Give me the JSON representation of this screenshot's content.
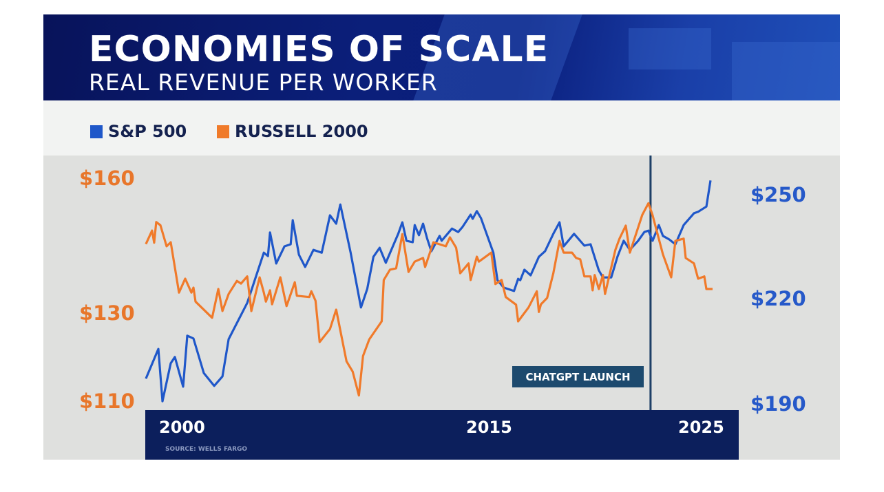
{
  "header": {
    "title": "ECONOMIES OF SCALE",
    "subtitle": "REAL REVENUE PER WORKER"
  },
  "footer": {
    "source": "SOURCE: WELLS FARGO"
  },
  "chart_data": {
    "type": "line",
    "title": "ECONOMIES OF SCALE",
    "subtitle": "REAL REVENUE PER WORKER",
    "legend_placement": "top-left",
    "grid": false,
    "x_ticks": [
      "2000",
      "2015",
      "2025"
    ],
    "xlim": [
      1998,
      2026
    ],
    "left_axis": {
      "ticks": [
        "$160",
        "$130",
        "$110"
      ],
      "ylim": [
        110,
        160
      ],
      "series": "RUSSELL 2000"
    },
    "right_axis": {
      "ticks": [
        "$250",
        "$220",
        "$190"
      ],
      "ylim": [
        190,
        250
      ],
      "series": "S&P 500"
    },
    "annotations": [
      {
        "label": "CHATGPT LAUNCH",
        "x": 2022.6
      }
    ],
    "series": [
      {
        "name": "S&P 500",
        "axis": "right",
        "color": "#1f57c9",
        "points": [
          [
            1998.2,
            197.3
          ],
          [
            1998.8,
            205.8
          ],
          [
            1999.0,
            190.8
          ],
          [
            1999.4,
            201.7
          ],
          [
            1999.6,
            203.5
          ],
          [
            2000.0,
            195.0
          ],
          [
            2000.2,
            209.6
          ],
          [
            2000.5,
            208.8
          ],
          [
            2001.0,
            198.9
          ],
          [
            2001.5,
            195.2
          ],
          [
            2001.9,
            197.9
          ],
          [
            2002.2,
            208.6
          ],
          [
            2003.1,
            219.0
          ],
          [
            2003.9,
            233.4
          ],
          [
            2004.1,
            232.4
          ],
          [
            2004.2,
            239.2
          ],
          [
            2004.5,
            230.3
          ],
          [
            2004.9,
            235.2
          ],
          [
            2005.2,
            235.8
          ],
          [
            2005.3,
            242.7
          ],
          [
            2005.6,
            232.8
          ],
          [
            2005.9,
            229.3
          ],
          [
            2006.3,
            234.2
          ],
          [
            2006.7,
            233.4
          ],
          [
            2007.1,
            244.1
          ],
          [
            2007.4,
            241.7
          ],
          [
            2007.6,
            247.2
          ],
          [
            2008.1,
            233.4
          ],
          [
            2008.6,
            217.7
          ],
          [
            2008.9,
            223.0
          ],
          [
            2009.2,
            232.2
          ],
          [
            2009.5,
            234.8
          ],
          [
            2009.8,
            230.5
          ],
          [
            2010.4,
            238.8
          ],
          [
            2010.6,
            242.1
          ],
          [
            2010.8,
            236.8
          ],
          [
            2011.1,
            236.4
          ],
          [
            2011.2,
            241.3
          ],
          [
            2011.4,
            238.4
          ],
          [
            2011.6,
            241.7
          ],
          [
            2011.8,
            237.4
          ],
          [
            2012.0,
            233.8
          ],
          [
            2012.4,
            238.2
          ],
          [
            2012.5,
            236.8
          ],
          [
            2013.0,
            240.3
          ],
          [
            2013.3,
            239.3
          ],
          [
            2013.5,
            240.7
          ],
          [
            2013.9,
            244.3
          ],
          [
            2014.0,
            243.1
          ],
          [
            2014.2,
            245.3
          ],
          [
            2014.4,
            243.3
          ],
          [
            2015.0,
            233.4
          ],
          [
            2015.2,
            225.5
          ],
          [
            2015.5,
            223.4
          ],
          [
            2016.0,
            222.4
          ],
          [
            2016.2,
            225.9
          ],
          [
            2016.3,
            225.5
          ],
          [
            2016.5,
            228.5
          ],
          [
            2016.8,
            226.9
          ],
          [
            2017.2,
            232.2
          ],
          [
            2017.5,
            233.8
          ],
          [
            2017.9,
            238.8
          ],
          [
            2018.2,
            242.1
          ],
          [
            2018.4,
            235.2
          ],
          [
            2018.9,
            238.8
          ],
          [
            2019.4,
            235.4
          ],
          [
            2019.7,
            235.8
          ],
          [
            2020.1,
            228.3
          ],
          [
            2020.3,
            226.3
          ],
          [
            2020.7,
            226.3
          ],
          [
            2021.0,
            232.2
          ],
          [
            2021.3,
            236.8
          ],
          [
            2021.6,
            234.2
          ],
          [
            2022.0,
            236.8
          ],
          [
            2022.3,
            239.3
          ],
          [
            2022.5,
            239.7
          ],
          [
            2022.7,
            236.8
          ],
          [
            2023.0,
            241.3
          ],
          [
            2023.2,
            238.2
          ],
          [
            2023.5,
            237.2
          ],
          [
            2023.8,
            235.8
          ],
          [
            2024.2,
            241.3
          ],
          [
            2024.7,
            244.7
          ],
          [
            2024.9,
            245.1
          ],
          [
            2025.3,
            246.6
          ],
          [
            2025.5,
            254.1
          ]
        ]
      },
      {
        "name": "RUSSELL 2000",
        "axis": "left",
        "color": "#f07a2a",
        "points": [
          [
            1998.2,
            145.5
          ],
          [
            1998.5,
            148.5
          ],
          [
            1998.6,
            145.8
          ],
          [
            1998.7,
            150.4
          ],
          [
            1998.9,
            149.7
          ],
          [
            1999.2,
            145.0
          ],
          [
            1999.4,
            145.9
          ],
          [
            1999.8,
            134.7
          ],
          [
            2000.1,
            137.8
          ],
          [
            2000.4,
            134.7
          ],
          [
            2000.5,
            135.8
          ],
          [
            2000.6,
            132.7
          ],
          [
            2001.4,
            129.1
          ],
          [
            2001.7,
            135.5
          ],
          [
            2001.9,
            130.6
          ],
          [
            2002.2,
            134.4
          ],
          [
            2002.6,
            137.3
          ],
          [
            2002.8,
            136.7
          ],
          [
            2003.1,
            138.3
          ],
          [
            2003.3,
            130.6
          ],
          [
            2003.7,
            138.1
          ],
          [
            2003.9,
            134.7
          ],
          [
            2004.0,
            132.7
          ],
          [
            2004.2,
            135.2
          ],
          [
            2004.3,
            132.1
          ],
          [
            2004.7,
            138.1
          ],
          [
            2005.0,
            131.7
          ],
          [
            2005.4,
            137.0
          ],
          [
            2005.5,
            134.0
          ],
          [
            2006.1,
            133.7
          ],
          [
            2006.2,
            135.0
          ],
          [
            2006.4,
            132.9
          ],
          [
            2006.6,
            123.7
          ],
          [
            2007.1,
            126.6
          ],
          [
            2007.4,
            130.9
          ],
          [
            2007.9,
            119.4
          ],
          [
            2008.2,
            117.1
          ],
          [
            2008.5,
            111.8
          ],
          [
            2008.7,
            120.6
          ],
          [
            2009.0,
            124.3
          ],
          [
            2009.6,
            128.3
          ],
          [
            2009.7,
            137.5
          ],
          [
            2010.0,
            139.8
          ],
          [
            2010.3,
            140.1
          ],
          [
            2010.6,
            147.7
          ],
          [
            2010.9,
            139.3
          ],
          [
            2011.2,
            141.6
          ],
          [
            2011.6,
            142.4
          ],
          [
            2011.7,
            140.4
          ],
          [
            2012.1,
            145.9
          ],
          [
            2012.7,
            145.0
          ],
          [
            2012.9,
            147.0
          ],
          [
            2013.2,
            144.7
          ],
          [
            2013.4,
            139.0
          ],
          [
            2013.8,
            141.2
          ],
          [
            2013.9,
            137.5
          ],
          [
            2014.2,
            142.7
          ],
          [
            2014.3,
            141.6
          ],
          [
            2014.9,
            143.6
          ],
          [
            2015.1,
            136.6
          ],
          [
            2015.4,
            137.5
          ],
          [
            2015.6,
            133.7
          ],
          [
            2016.1,
            132.0
          ],
          [
            2016.2,
            128.3
          ],
          [
            2016.7,
            131.4
          ],
          [
            2017.1,
            135.0
          ],
          [
            2017.2,
            130.4
          ],
          [
            2017.3,
            132.1
          ],
          [
            2017.6,
            133.5
          ],
          [
            2017.9,
            139.0
          ],
          [
            2018.2,
            146.2
          ],
          [
            2018.4,
            143.6
          ],
          [
            2018.8,
            143.6
          ],
          [
            2019.0,
            142.4
          ],
          [
            2019.2,
            142.1
          ],
          [
            2019.4,
            138.3
          ],
          [
            2019.7,
            138.3
          ],
          [
            2019.8,
            135.2
          ],
          [
            2019.9,
            138.6
          ],
          [
            2020.1,
            135.5
          ],
          [
            2020.3,
            138.6
          ],
          [
            2020.4,
            134.4
          ],
          [
            2020.9,
            144.2
          ],
          [
            2021.1,
            146.7
          ],
          [
            2021.4,
            149.6
          ],
          [
            2021.6,
            143.6
          ],
          [
            2022.2,
            152.0
          ],
          [
            2022.5,
            154.6
          ],
          [
            2022.7,
            151.9
          ],
          [
            2023.2,
            143.2
          ],
          [
            2023.6,
            138.1
          ],
          [
            2023.8,
            146.2
          ],
          [
            2024.2,
            146.7
          ],
          [
            2024.3,
            142.4
          ],
          [
            2024.7,
            141.2
          ],
          [
            2024.9,
            137.8
          ],
          [
            2025.2,
            138.3
          ],
          [
            2025.3,
            135.5
          ],
          [
            2025.6,
            135.5
          ]
        ]
      }
    ]
  }
}
